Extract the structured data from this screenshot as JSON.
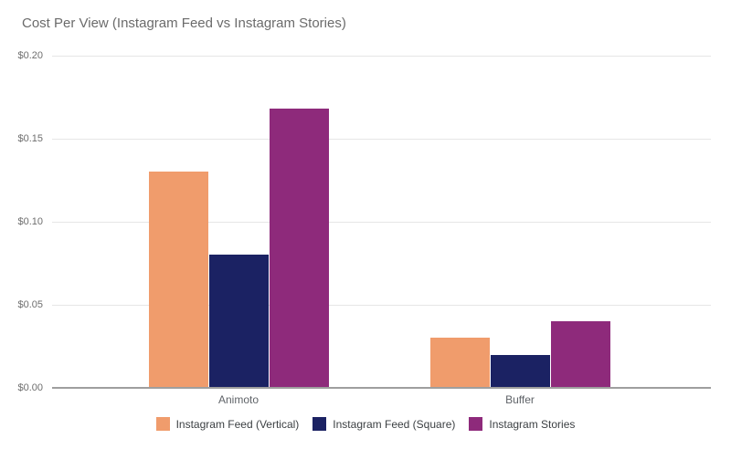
{
  "chart_data": {
    "type": "bar",
    "title": "Cost Per View (Instagram Feed vs Instagram Stories)",
    "categories": [
      "Animoto",
      "Buffer"
    ],
    "series": [
      {
        "name": "Instagram Feed (Vertical)",
        "color": "#F09C6C",
        "values": [
          0.13,
          0.03
        ]
      },
      {
        "name": "Instagram Feed (Square)",
        "color": "#1B2263",
        "values": [
          0.08,
          0.02
        ]
      },
      {
        "name": "Instagram Stories",
        "color": "#8E2A7B",
        "values": [
          0.168,
          0.04
        ]
      }
    ],
    "xlabel": "",
    "ylabel": "",
    "ylim": [
      0,
      0.2
    ],
    "ytick_step": 0.05,
    "ytick_labels": [
      "$0.00",
      "$0.05",
      "$0.10",
      "$0.15",
      "$0.20"
    ],
    "grid": true,
    "legend_position": "bottom"
  },
  "colors": {
    "background": "#FFFFFF",
    "title_text": "#6B6B6B",
    "y_axis_label_text": "#6E6E6E",
    "category_label_text": "#5F6368",
    "legend_text": "#3C4043",
    "gridline": "#E6E6E6",
    "axis_line": "#9E9E9E"
  }
}
